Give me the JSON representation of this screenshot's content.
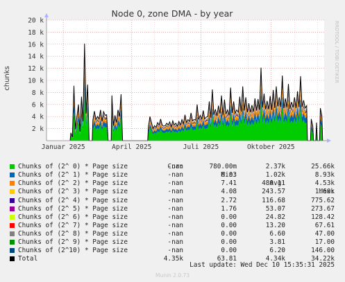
{
  "chart_data": {
    "type": "area",
    "title": "Node 0, zone DMA - by year",
    "ylabel": "chunks",
    "ylim": [
      0,
      20000
    ],
    "yticks": [
      {
        "v": 0,
        "l": ""
      },
      {
        "v": 2000,
        "l": "2 k"
      },
      {
        "v": 4000,
        "l": "4 k"
      },
      {
        "v": 6000,
        "l": "6 k"
      },
      {
        "v": 8000,
        "l": "8 k"
      },
      {
        "v": 10000,
        "l": "10 k"
      },
      {
        "v": 12000,
        "l": "12 k"
      },
      {
        "v": 14000,
        "l": "14 k"
      },
      {
        "v": 16000,
        "l": "16 k"
      },
      {
        "v": 18000,
        "l": "18 k"
      },
      {
        "v": 20000,
        "l": "20 k"
      }
    ],
    "xdomain": [
      "2024-12-10",
      "2025-12-10"
    ],
    "xticks": [
      {
        "date": "2025-01-01",
        "label": "Januar 2025"
      },
      {
        "date": "2025-04-01",
        "label": "April 2025"
      },
      {
        "date": "2025-07-01",
        "label": "Juli 2025"
      },
      {
        "date": "2025-10-01",
        "label": "Oktober 2025"
      }
    ],
    "grid": true,
    "stack_colors": [
      "#00cc00",
      "#0066b3",
      "#ff8000",
      "#ffcc00",
      "#330099",
      "#990099",
      "#ccff00",
      "#ff0000",
      "#808080",
      "#008f00",
      "#00487d"
    ],
    "total_color": "#000000",
    "total_series": [
      [
        "2025-01-10",
        0
      ],
      [
        "2025-01-11",
        1300
      ],
      [
        "2025-01-13",
        600
      ],
      [
        "2025-01-15",
        9100
      ],
      [
        "2025-01-17",
        1900
      ],
      [
        "2025-01-19",
        4000
      ],
      [
        "2025-01-21",
        6000
      ],
      [
        "2025-01-23",
        1500
      ],
      [
        "2025-01-25",
        7300
      ],
      [
        "2025-01-27",
        3200
      ],
      [
        "2025-01-29",
        16100
      ],
      [
        "2025-01-31",
        4500
      ],
      [
        "2025-02-02",
        9300
      ],
      [
        "2025-02-04",
        0
      ],
      [
        "2025-02-08",
        0
      ],
      [
        "2025-02-09",
        3400
      ],
      [
        "2025-02-11",
        4900
      ],
      [
        "2025-02-13",
        3500
      ],
      [
        "2025-02-15",
        4000
      ],
      [
        "2025-02-17",
        3600
      ],
      [
        "2025-02-19",
        5100
      ],
      [
        "2025-02-21",
        3200
      ],
      [
        "2025-02-23",
        4800
      ],
      [
        "2025-02-25",
        4200
      ],
      [
        "2025-02-27",
        4300
      ],
      [
        "2025-03-01",
        0
      ],
      [
        "2025-03-05",
        0
      ],
      [
        "2025-03-06",
        7500
      ],
      [
        "2025-03-08",
        2500
      ],
      [
        "2025-03-10",
        4200
      ],
      [
        "2025-03-12",
        3000
      ],
      [
        "2025-03-14",
        5100
      ],
      [
        "2025-03-16",
        4000
      ],
      [
        "2025-03-18",
        7700
      ],
      [
        "2025-03-20",
        0
      ],
      [
        "2025-04-22",
        0
      ],
      [
        "2025-04-23",
        2300
      ],
      [
        "2025-04-25",
        4000
      ],
      [
        "2025-04-27",
        3000
      ],
      [
        "2025-04-29",
        2000
      ],
      [
        "2025-05-01",
        2500
      ],
      [
        "2025-05-03",
        2200
      ],
      [
        "2025-05-05",
        3000
      ],
      [
        "2025-05-07",
        2600
      ],
      [
        "2025-05-09",
        3600
      ],
      [
        "2025-05-11",
        2600
      ],
      [
        "2025-05-13",
        2400
      ],
      [
        "2025-05-15",
        2500
      ],
      [
        "2025-05-17",
        2900
      ],
      [
        "2025-05-19",
        2600
      ],
      [
        "2025-05-21",
        3100
      ],
      [
        "2025-05-23",
        2300
      ],
      [
        "2025-05-25",
        3300
      ],
      [
        "2025-05-27",
        2600
      ],
      [
        "2025-05-29",
        2900
      ],
      [
        "2025-05-31",
        2400
      ],
      [
        "2025-06-02",
        3200
      ],
      [
        "2025-06-04",
        2600
      ],
      [
        "2025-06-06",
        3500
      ],
      [
        "2025-06-08",
        2800
      ],
      [
        "2025-06-10",
        4300
      ],
      [
        "2025-06-12",
        3000
      ],
      [
        "2025-06-14",
        3500
      ],
      [
        "2025-06-16",
        3200
      ],
      [
        "2025-06-18",
        4600
      ],
      [
        "2025-06-20",
        3300
      ],
      [
        "2025-06-22",
        3500
      ],
      [
        "2025-06-24",
        3400
      ],
      [
        "2025-06-26",
        6000
      ],
      [
        "2025-06-28",
        3500
      ],
      [
        "2025-06-30",
        4200
      ],
      [
        "2025-07-02",
        3600
      ],
      [
        "2025-07-04",
        5000
      ],
      [
        "2025-07-06",
        3600
      ],
      [
        "2025-07-08",
        3900
      ],
      [
        "2025-07-10",
        4000
      ],
      [
        "2025-07-12",
        6500
      ],
      [
        "2025-07-14",
        3800
      ],
      [
        "2025-07-16",
        8500
      ],
      [
        "2025-07-18",
        4300
      ],
      [
        "2025-07-20",
        5200
      ],
      [
        "2025-07-22",
        4100
      ],
      [
        "2025-07-24",
        5800
      ],
      [
        "2025-07-26",
        4500
      ],
      [
        "2025-07-28",
        7500
      ],
      [
        "2025-07-30",
        4200
      ],
      [
        "2025-08-01",
        6800
      ],
      [
        "2025-08-03",
        4400
      ],
      [
        "2025-08-05",
        5100
      ],
      [
        "2025-08-07",
        4200
      ],
      [
        "2025-08-09",
        8800
      ],
      [
        "2025-08-11",
        4600
      ],
      [
        "2025-08-13",
        6500
      ],
      [
        "2025-08-15",
        4500
      ],
      [
        "2025-08-17",
        5100
      ],
      [
        "2025-08-19",
        4700
      ],
      [
        "2025-08-21",
        7300
      ],
      [
        "2025-08-23",
        4800
      ],
      [
        "2025-08-25",
        9000
      ],
      [
        "2025-08-27",
        5000
      ],
      [
        "2025-08-29",
        7200
      ],
      [
        "2025-08-31",
        4700
      ],
      [
        "2025-09-02",
        6200
      ],
      [
        "2025-09-04",
        4700
      ],
      [
        "2025-09-06",
        5900
      ],
      [
        "2025-09-08",
        4800
      ],
      [
        "2025-09-10",
        7000
      ],
      [
        "2025-09-12",
        5000
      ],
      [
        "2025-09-14",
        6900
      ],
      [
        "2025-09-16",
        5100
      ],
      [
        "2025-09-18",
        12100
      ],
      [
        "2025-09-20",
        5500
      ],
      [
        "2025-09-22",
        7800
      ],
      [
        "2025-09-24",
        5200
      ],
      [
        "2025-09-26",
        6600
      ],
      [
        "2025-09-28",
        5200
      ],
      [
        "2025-09-30",
        7400
      ],
      [
        "2025-10-02",
        5100
      ],
      [
        "2025-10-04",
        8400
      ],
      [
        "2025-10-06",
        5400
      ],
      [
        "2025-10-08",
        9000
      ],
      [
        "2025-10-10",
        5700
      ],
      [
        "2025-10-12",
        7200
      ],
      [
        "2025-10-14",
        5600
      ],
      [
        "2025-10-16",
        10800
      ],
      [
        "2025-10-18",
        5400
      ],
      [
        "2025-10-20",
        7000
      ],
      [
        "2025-10-22",
        5500
      ],
      [
        "2025-10-24",
        9400
      ],
      [
        "2025-10-26",
        5300
      ],
      [
        "2025-10-28",
        6400
      ],
      [
        "2025-10-30",
        5500
      ],
      [
        "2025-11-01",
        7200
      ],
      [
        "2025-11-03",
        5400
      ],
      [
        "2025-11-05",
        8200
      ],
      [
        "2025-11-07",
        5600
      ],
      [
        "2025-11-09",
        10700
      ],
      [
        "2025-11-11",
        5600
      ],
      [
        "2025-11-13",
        6700
      ],
      [
        "2025-11-15",
        5400
      ],
      [
        "2025-11-17",
        5800
      ],
      [
        "2025-11-18",
        0
      ],
      [
        "2025-11-22",
        0
      ],
      [
        "2025-11-23",
        3600
      ],
      [
        "2025-11-25",
        2400
      ],
      [
        "2025-11-26",
        0
      ],
      [
        "2025-11-29",
        0
      ],
      [
        "2025-11-30",
        3000
      ],
      [
        "2025-12-01",
        0
      ],
      [
        "2025-12-04",
        0
      ],
      [
        "2025-12-05",
        5400
      ],
      [
        "2025-12-07",
        4100
      ],
      [
        "2025-12-08",
        0
      ]
    ],
    "legend_header": {
      "cur": "Cur:",
      "min": "Min:",
      "avg": "Avg:",
      "max": "Max:"
    },
    "legend": [
      {
        "name": "Chunks of (2^ 0) * Page size",
        "color": "#00cc00",
        "cur": "-nan",
        "min": "780.00m",
        "avg": "2.37k",
        "max": "25.66k"
      },
      {
        "name": "Chunks of (2^ 1) * Page size",
        "color": "#0066b3",
        "cur": "-nan",
        "min": "6.03",
        "avg": "1.02k",
        "max": "8.93k"
      },
      {
        "name": "Chunks of (2^ 2) * Page size",
        "color": "#ff8000",
        "cur": "-nan",
        "min": "7.41",
        "avg": "480.11",
        "max": "4.53k"
      },
      {
        "name": "Chunks of (2^ 3) * Page size",
        "color": "#ffcc00",
        "cur": "-nan",
        "min": "4.08",
        "avg": "243.57",
        "max": "1.60k"
      },
      {
        "name": "Chunks of (2^ 4) * Page size",
        "color": "#330099",
        "cur": "-nan",
        "min": "2.72",
        "avg": "116.68",
        "max": "775.62"
      },
      {
        "name": "Chunks of (2^ 5) * Page size",
        "color": "#990099",
        "cur": "-nan",
        "min": "1.76",
        "avg": "53.07",
        "max": "273.67"
      },
      {
        "name": "Chunks of (2^ 6) * Page size",
        "color": "#ccff00",
        "cur": "-nan",
        "min": "0.00",
        "avg": "24.82",
        "max": "128.42"
      },
      {
        "name": "Chunks of (2^ 7) * Page size",
        "color": "#ff0000",
        "cur": "-nan",
        "min": "0.00",
        "avg": "13.20",
        "max": "67.61"
      },
      {
        "name": "Chunks of (2^ 8) * Page size",
        "color": "#808080",
        "cur": "-nan",
        "min": "0.00",
        "avg": "6.60",
        "max": "47.00"
      },
      {
        "name": "Chunks of (2^ 9) * Page size",
        "color": "#008f00",
        "cur": "-nan",
        "min": "0.00",
        "avg": "3.81",
        "max": "17.00"
      },
      {
        "name": "Chunks of (2^10) * Page size",
        "color": "#00487d",
        "cur": "-nan",
        "min": "0.00",
        "avg": "6.20",
        "max": "146.00"
      },
      {
        "name": "Total",
        "color": "#000000",
        "cur": "4.35k",
        "min": "63.81",
        "avg": "4.34k",
        "max": "34.22k"
      }
    ]
  },
  "side_label": "RRDTOOL / TOBI OETIKER",
  "footer": "Last update: Wed Dec 10 15:35:31 2025",
  "credit": "Munin 2.0.73"
}
